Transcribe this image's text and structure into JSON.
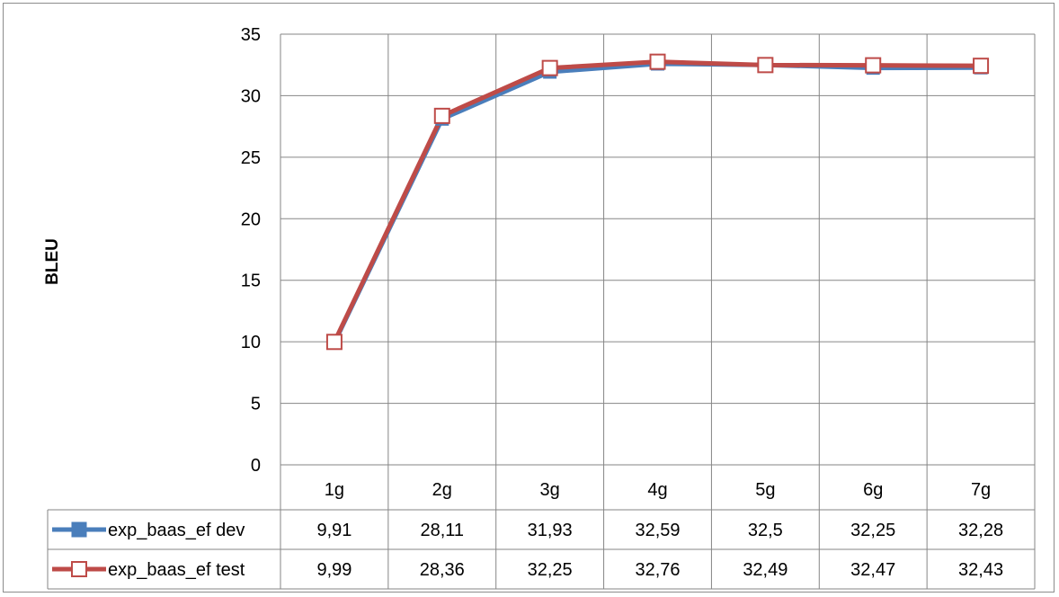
{
  "chart_data": {
    "type": "line",
    "title": "",
    "xlabel": "",
    "ylabel": "BLEU",
    "ylim": [
      0,
      35
    ],
    "yticks": [
      0,
      5,
      10,
      15,
      20,
      25,
      30,
      35
    ],
    "grid": true,
    "legend": "data-table-bottom",
    "categories": [
      "1g",
      "2g",
      "3g",
      "4g",
      "5g",
      "6g",
      "7g"
    ],
    "series": [
      {
        "name": "exp_baas_ef dev",
        "color": "#4a7ebb",
        "marker": "filled-square",
        "values": [
          9.91,
          28.11,
          31.93,
          32.59,
          32.5,
          32.25,
          32.28
        ],
        "labels": [
          "9,91",
          "28,11",
          "31,93",
          "32,59",
          "32,5",
          "32,25",
          "32,28"
        ]
      },
      {
        "name": "exp_baas_ef test",
        "color": "#be4b48",
        "marker": "open-square",
        "values": [
          9.99,
          28.36,
          32.25,
          32.76,
          32.49,
          32.47,
          32.43
        ],
        "labels": [
          "9,99",
          "28,36",
          "32,25",
          "32,76",
          "32,49",
          "32,47",
          "32,43"
        ]
      }
    ]
  }
}
